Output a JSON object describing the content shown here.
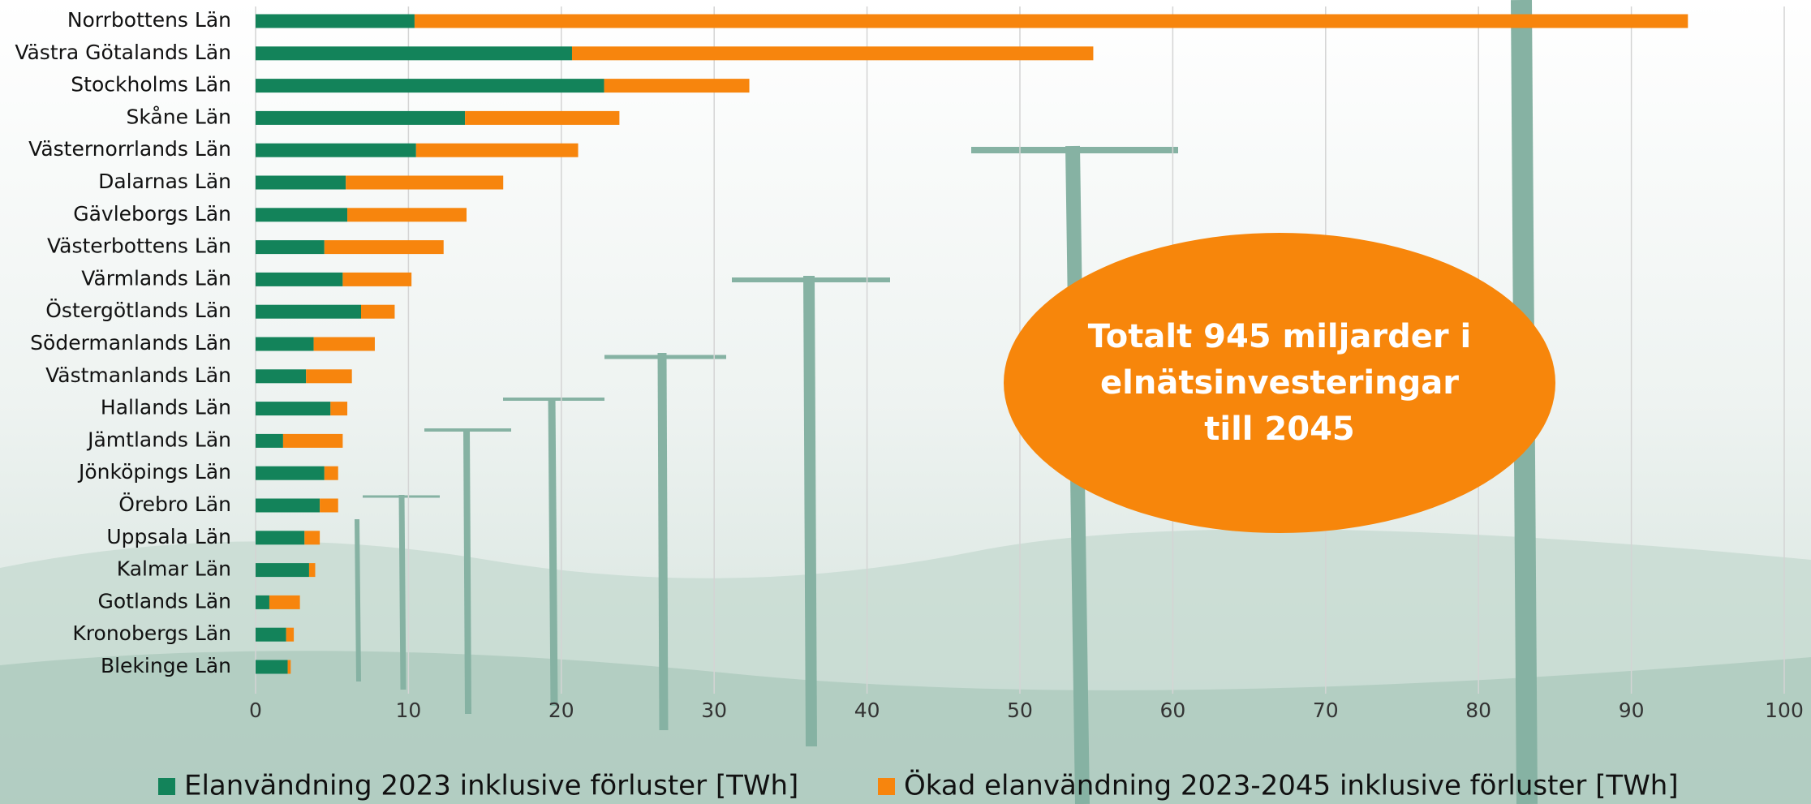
{
  "chart_data": {
    "type": "stacked-barh",
    "categories": [
      "Norrbottens Län",
      "Västra Götalands Län",
      "Stockholms Län",
      "Skåne Län",
      "Västernorrlands Län",
      "Dalarnas Län",
      "Gävleborgs Län",
      "Västerbottens Län",
      "Värmlands Län",
      "Östergötlands Län",
      "Södermanlands Län",
      "Västmanlands Län",
      "Hallands Län",
      "Jämtlands Län",
      "Jönköpings Län",
      "Örebro Län",
      "Uppsala Län",
      "Kalmar Län",
      "Gotlands Län",
      "Kronobergs Län",
      "Blekinge Län"
    ],
    "series": [
      {
        "name": "Elanvändning 2023 inklusive förluster [TWh]",
        "color": "#13835a",
        "values": [
          10.4,
          20.7,
          22.8,
          13.7,
          10.5,
          5.9,
          6.0,
          4.5,
          5.7,
          6.9,
          3.8,
          3.3,
          4.9,
          1.8,
          4.5,
          4.2,
          3.2,
          3.5,
          0.9,
          2.0,
          2.1
        ]
      },
      {
        "name": "Ökad elanvändning 2023-2045 inklusive förluster [TWh]",
        "color": "#f7850d",
        "values": [
          83.3,
          34.1,
          9.5,
          10.1,
          10.6,
          10.3,
          7.8,
          7.8,
          4.5,
          2.2,
          4.0,
          3.0,
          1.1,
          3.9,
          0.9,
          1.2,
          1.0,
          0.4,
          2.0,
          0.5,
          0.2
        ]
      }
    ],
    "xlim": [
      0,
      100
    ],
    "xticks": [
      0,
      10,
      20,
      30,
      40,
      50,
      60,
      70,
      80,
      90,
      100
    ],
    "grid": true,
    "annotation": [
      "Totalt 945 miljarder i",
      "elnätsinvesteringar",
      "till 2045"
    ],
    "annotation_color": "#f7860b"
  }
}
